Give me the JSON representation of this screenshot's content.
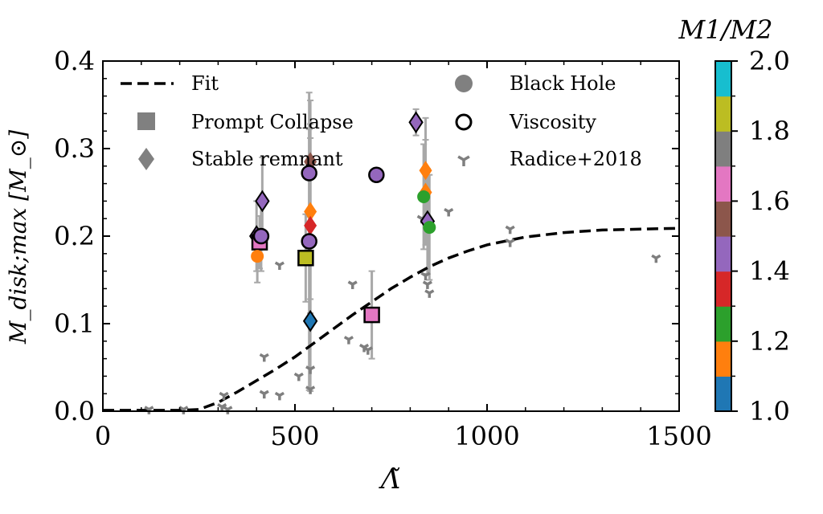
{
  "chart_data": {
    "type": "scatter",
    "xlabel": "Λ̃",
    "ylabel": "M_disk;max [M_⊙]",
    "xlim": [
      0,
      1500
    ],
    "ylim": [
      0,
      0.4
    ],
    "xticks": [
      "0",
      "500",
      "1000",
      "1500"
    ],
    "yticks": [
      "0.0",
      "0.1",
      "0.2",
      "0.3",
      "0.4"
    ],
    "colorbar": {
      "label": "M1/M2",
      "range": [
        1.0,
        2.0
      ],
      "ticks": [
        "1.0",
        "1.2",
        "1.4",
        "1.6",
        "1.8",
        "2.0"
      ],
      "colors": [
        "#1f77b4",
        "#ff7f0e",
        "#2ca02c",
        "#d62728",
        "#9467bd",
        "#8c564b",
        "#e377c2",
        "#7f7f7f",
        "#bcbd22",
        "#17becf"
      ]
    },
    "legend": {
      "placement": "top",
      "entries": [
        "Fit",
        "Black Hole",
        "Prompt Collapse",
        "Viscosity",
        "Stable remnant",
        "Radice+2018"
      ]
    },
    "series": [
      {
        "name": "Fit",
        "kind": "line",
        "x": [
          0,
          100,
          200,
          250,
          300,
          350,
          400,
          450,
          500,
          550,
          600,
          650,
          700,
          750,
          800,
          850,
          900,
          950,
          1000,
          1100,
          1200,
          1300,
          1400,
          1500
        ],
        "y": [
          0.001,
          0.001,
          0.001,
          0.002,
          0.01,
          0.022,
          0.035,
          0.048,
          0.062,
          0.078,
          0.094,
          0.11,
          0.125,
          0.14,
          0.153,
          0.165,
          0.175,
          0.183,
          0.19,
          0.199,
          0.204,
          0.207,
          0.208,
          0.209
        ]
      },
      {
        "name": "Radice+2018",
        "kind": "scatter",
        "x": [
          120,
          210,
          310,
          315,
          325,
          420,
          420,
          460,
          460,
          510,
          540,
          540,
          640,
          650,
          680,
          690,
          830,
          840,
          845,
          850,
          900,
          1060,
          1060,
          1440
        ],
        "y": [
          0.002,
          0.002,
          0.005,
          0.018,
          0.002,
          0.062,
          0.02,
          0.018,
          0.167,
          0.04,
          0.048,
          0.025,
          0.082,
          0.145,
          0.073,
          0.07,
          0.22,
          0.155,
          0.145,
          0.135,
          0.228,
          0.208,
          0.193,
          0.175
        ]
      },
      {
        "name": "Stable remnant",
        "kind": "scatter",
        "x": [
          400,
          415,
          540,
          540,
          540,
          540,
          815,
          840,
          840,
          845
        ],
        "y": [
          0.2,
          0.24,
          0.103,
          0.228,
          0.212,
          0.285,
          0.33,
          0.275,
          0.25,
          0.217
        ],
        "q": [
          1.45,
          1.45,
          1.0,
          1.1,
          1.35,
          1.55,
          1.45,
          1.1,
          1.1,
          1.45
        ],
        "outlined": [
          true,
          true,
          true,
          false,
          false,
          false,
          true,
          false,
          false,
          true
        ],
        "yerr": [
          0.04,
          0.05,
          0.08,
          0.1,
          0.1,
          0.07,
          0.015,
          0.06,
          0.06,
          0.06
        ]
      },
      {
        "name": "Prompt Collapse",
        "kind": "scatter",
        "x": [
          408,
          528,
          700
        ],
        "y": [
          0.193,
          0.175,
          0.11
        ],
        "q": [
          1.65,
          1.85,
          1.65
        ],
        "outlined": [
          true,
          true,
          true
        ],
        "yerr": [
          0.03,
          0.05,
          0.05
        ]
      },
      {
        "name": "Black Hole",
        "kind": "scatter",
        "x": [
          402,
          537,
          712,
          835,
          850
        ],
        "y": [
          0.177,
          0.272,
          0.27,
          0.245,
          0.21
        ],
        "q": [
          1.1,
          1.45,
          1.45,
          1.25,
          1.25
        ],
        "outlined": [
          false,
          true,
          true,
          false,
          false
        ],
        "yerr": [
          0.03,
          0.05,
          0.0,
          0.06,
          0.06
        ]
      },
      {
        "name": "Viscosity",
        "kind": "scatter",
        "x": [
          412,
          537
        ],
        "y": [
          0.2,
          0.194
        ],
        "q": [
          1.45,
          1.45
        ],
        "outlined": [
          true,
          true
        ],
        "yerr": [
          0.04,
          0.17
        ]
      }
    ]
  }
}
